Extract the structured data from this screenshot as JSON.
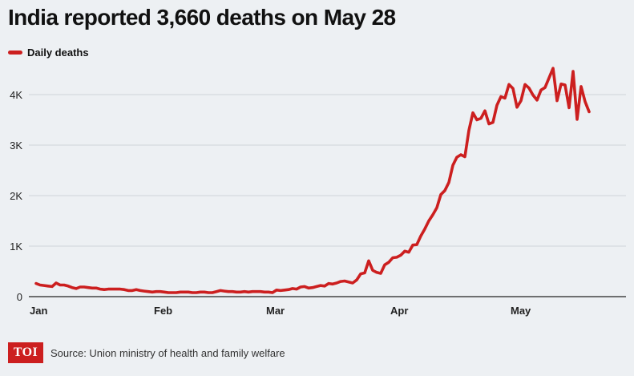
{
  "title": "India reported 3,660 deaths on May 28",
  "legend": {
    "label": "Daily deaths",
    "color": "#cc1f1f"
  },
  "footer": {
    "logo_text": "TOI",
    "source": "Source: Union ministry of health and family welfare"
  },
  "chart_data": {
    "type": "line",
    "title": "India reported 3,660 deaths on May 28",
    "xlabel": "",
    "ylabel": "",
    "ylim": [
      0,
      4500
    ],
    "yticks": [
      0,
      1000,
      2000,
      3000,
      4000
    ],
    "ytick_labels": [
      "0",
      "1K",
      "2K",
      "3K",
      "4K"
    ],
    "x_start": "Jan 1",
    "x_end": "May 28",
    "xticks": [
      {
        "label": "Jan",
        "day": 0
      },
      {
        "label": "Feb",
        "day": 31
      },
      {
        "label": "Mar",
        "day": 59
      },
      {
        "label": "Apr",
        "day": 90
      },
      {
        "label": "May",
        "day": 120
      }
    ],
    "grid": true,
    "series": [
      {
        "name": "Daily deaths",
        "color": "#cc1f1f",
        "values": [
          260,
          230,
          220,
          210,
          200,
          270,
          230,
          230,
          210,
          180,
          160,
          190,
          190,
          180,
          170,
          170,
          150,
          140,
          150,
          150,
          150,
          150,
          140,
          120,
          120,
          140,
          120,
          110,
          100,
          90,
          100,
          100,
          90,
          80,
          80,
          80,
          90,
          90,
          90,
          80,
          80,
          90,
          90,
          80,
          80,
          100,
          120,
          110,
          100,
          100,
          90,
          90,
          100,
          90,
          100,
          100,
          100,
          90,
          90,
          80,
          130,
          120,
          130,
          140,
          160,
          150,
          190,
          200,
          170,
          180,
          200,
          220,
          210,
          260,
          250,
          270,
          300,
          310,
          290,
          270,
          330,
          450,
          470,
          710,
          520,
          480,
          460,
          630,
          680,
          770,
          780,
          820,
          900,
          880,
          1020,
          1030,
          1200,
          1340,
          1500,
          1620,
          1760,
          2020,
          2100,
          2260,
          2600,
          2760,
          2810,
          2770,
          3290,
          3640,
          3500,
          3530,
          3680,
          3420,
          3450,
          3790,
          3960,
          3930,
          4200,
          4120,
          3750,
          3880,
          4200,
          4130,
          3990,
          3890,
          4090,
          4140,
          4330,
          4520,
          3880,
          4210,
          4190,
          3740,
          4460,
          3510,
          4160,
          3860,
          3660
        ]
      }
    ]
  }
}
